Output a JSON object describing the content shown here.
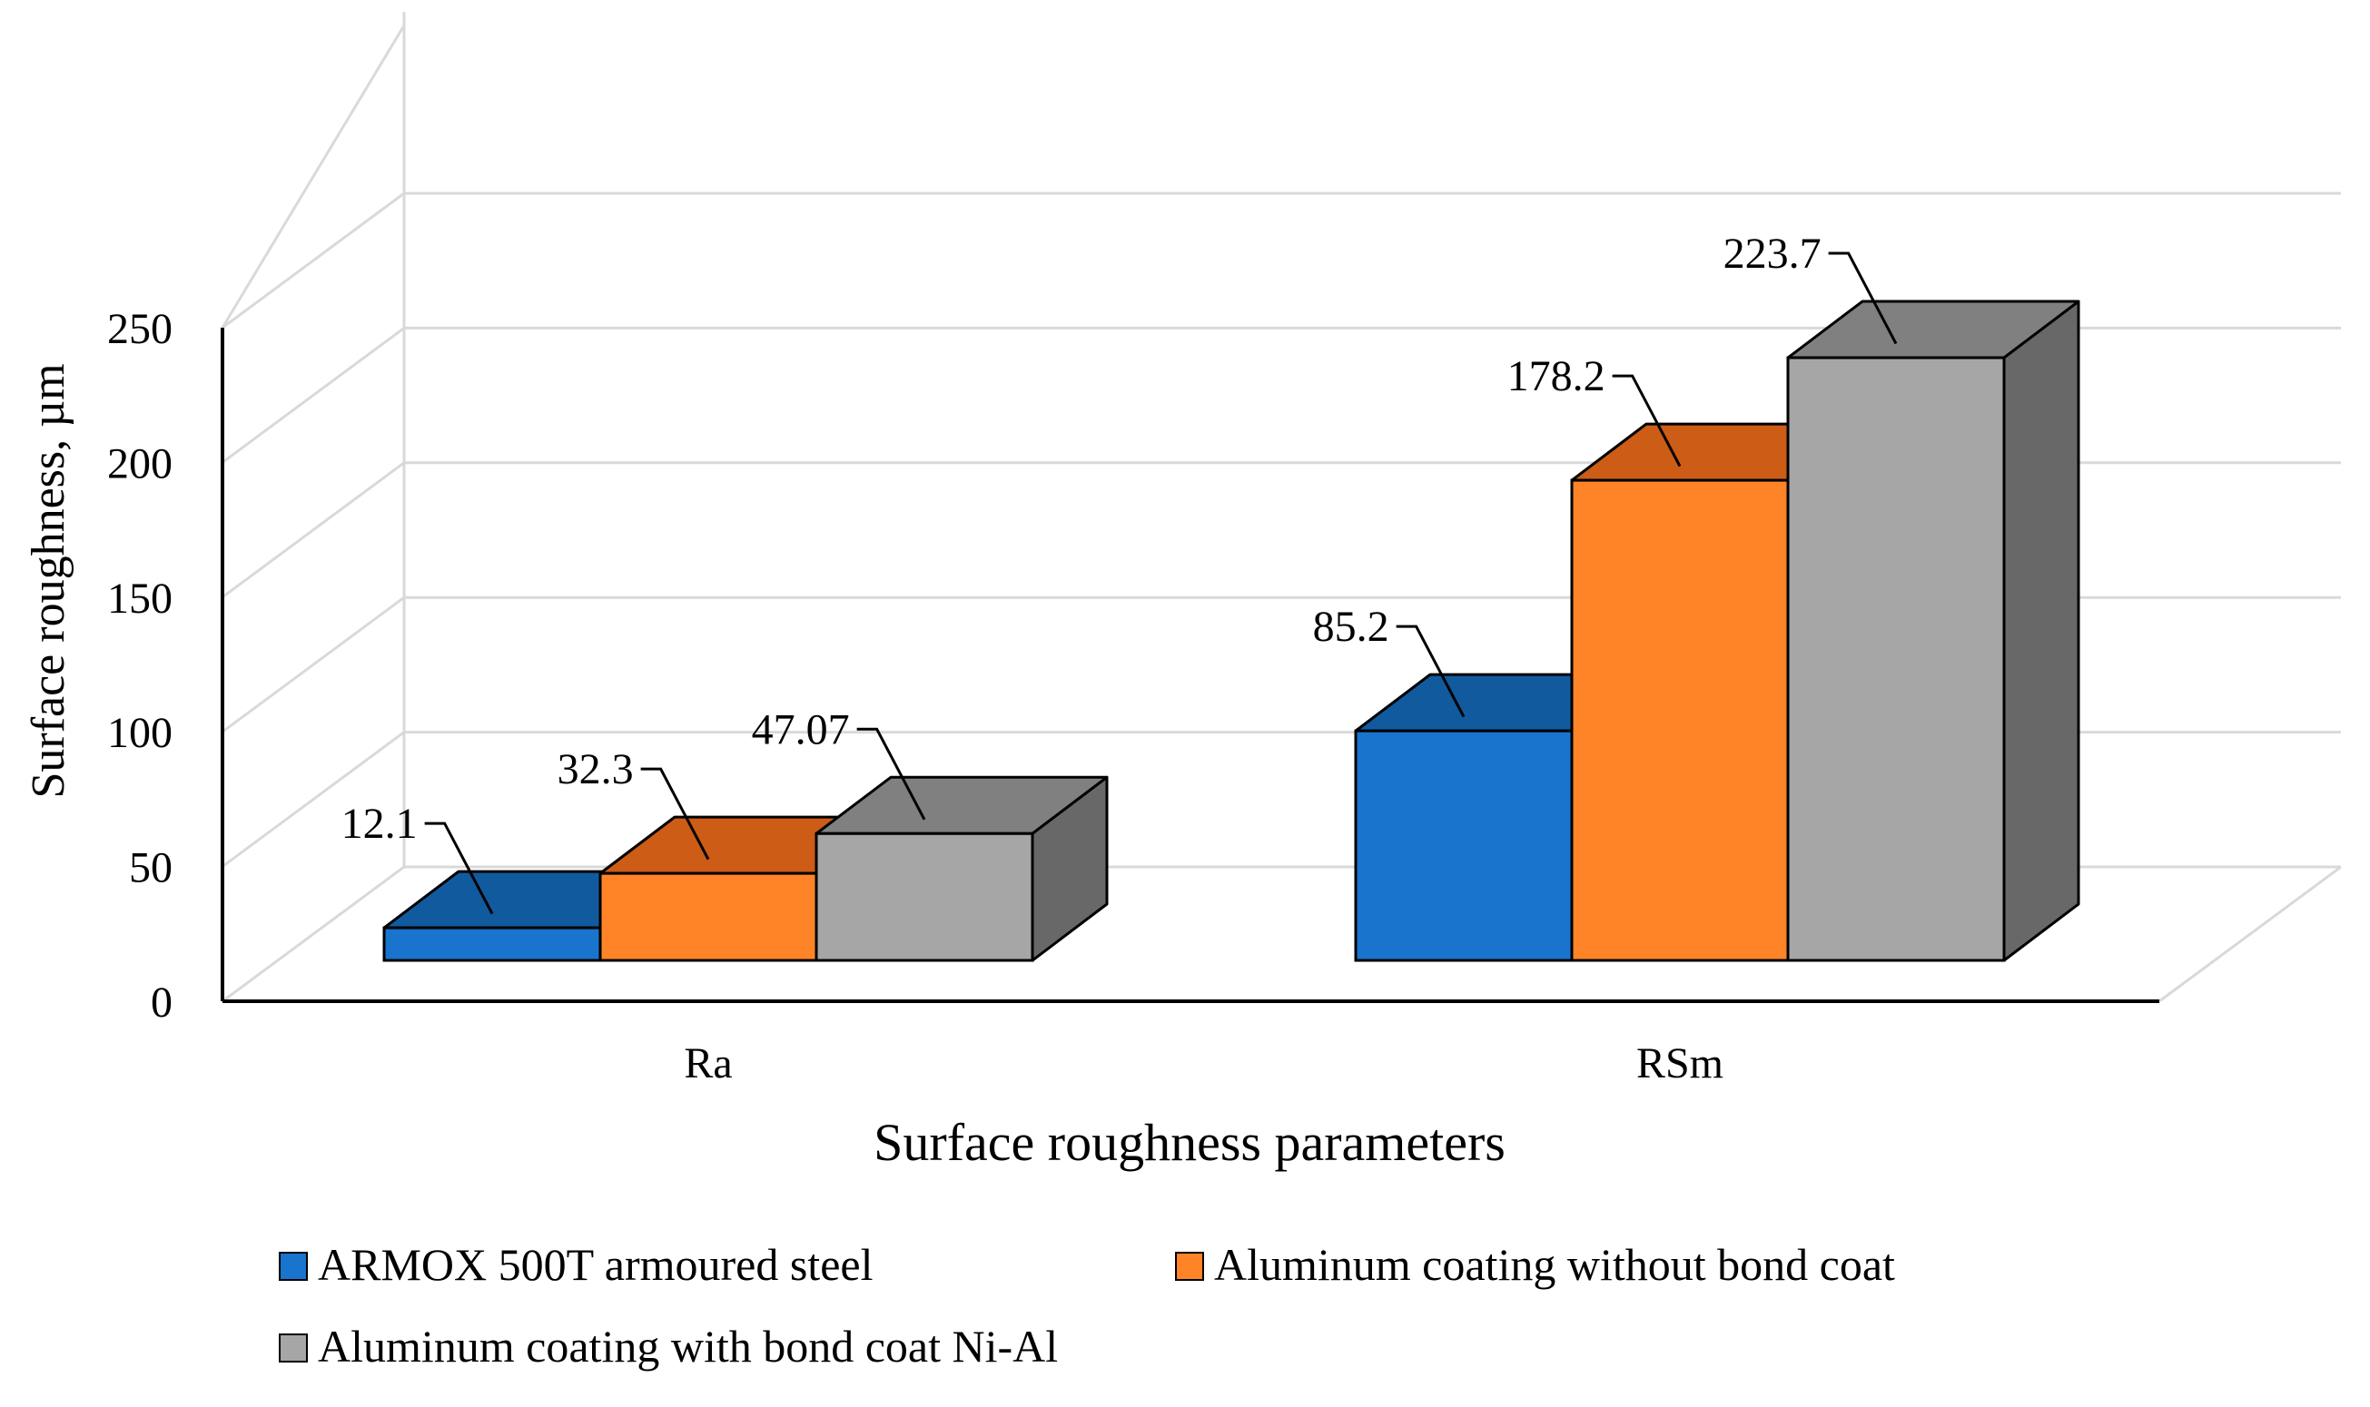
{
  "chart_data": {
    "type": "bar",
    "subtype": "3d-clustered-column",
    "title": "",
    "xlabel": "Surface roughness parameters",
    "ylabel": "Surface roughness, µm",
    "ylim": [
      0,
      250
    ],
    "yticks": [
      0,
      50,
      100,
      150,
      200,
      250
    ],
    "grid": true,
    "legend_position": "bottom",
    "categories": [
      "Ra",
      "RSm"
    ],
    "series": [
      {
        "name": "ARMOX 500T armoured steel",
        "legend_label": " ARMOX 500T armoured steel",
        "values": [
          12.1,
          85.2
        ],
        "value_labels": [
          "12.1",
          "85.2"
        ],
        "color": "#1874CD",
        "top_color": "#125A9E",
        "side_color": "#0F4A82"
      },
      {
        "name": "Aluminum coating without bond coat",
        "legend_label": "Aluminum coating without bond coat",
        "values": [
          32.3,
          178.2
        ],
        "value_labels": [
          "32.3",
          "178.2"
        ],
        "color": "#FF8427",
        "top_color": "#CC5C16",
        "side_color": "#A84A10"
      },
      {
        "name": "Aluminum coating with bond coat Ni-Al",
        "legend_label": "Aluminum coating with bond coat Ni-Al",
        "values": [
          47.07,
          223.7
        ],
        "value_labels": [
          "47.07",
          "223.7"
        ],
        "color": "#A6A6A6",
        "top_color": "#808080",
        "side_color": "#686868"
      }
    ],
    "colors": {
      "grid": "#D9D9D9",
      "axis": "#000000",
      "outline": "#000000"
    }
  }
}
